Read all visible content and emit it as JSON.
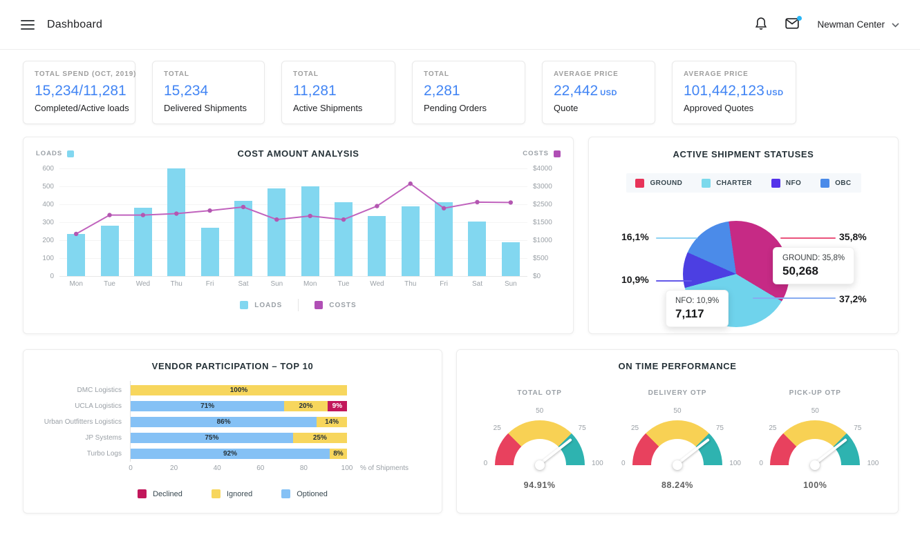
{
  "header": {
    "title": "Dashboard",
    "account": "Newman Center"
  },
  "stat_cards": [
    {
      "label": "TOTAL SPEND (OCT, 2019)",
      "value": "15,234/11,281",
      "unit": "",
      "desc": "Completed/Active loads"
    },
    {
      "label": "TOTAL",
      "value": "15,234",
      "unit": "",
      "desc": "Delivered Shipments"
    },
    {
      "label": "TOTAL",
      "value": "11,281",
      "unit": "",
      "desc": "Active Shipments"
    },
    {
      "label": "TOTAL",
      "value": "2,281",
      "unit": "",
      "desc": "Pending Orders"
    },
    {
      "label": "AVERAGE PRICE",
      "value": "22,442",
      "unit": "USD",
      "desc": "Quote"
    },
    {
      "label": "AVERAGE PRICE",
      "value": "101,442,123",
      "unit": "USD",
      "desc": "Approved Quotes"
    }
  ],
  "colors": {
    "accent_blue": "#4285f4",
    "loads_bar": "#82d7f0",
    "costs_line": "#c062bd",
    "costs_dot": "#b357b1"
  },
  "chart_data": [
    {
      "id": "cost_amount_analysis",
      "type": "bar",
      "title": "COST AMOUNT ANALYSIS",
      "categories": [
        "Mon",
        "Tue",
        "Wed",
        "Thu",
        "Fri",
        "Sat",
        "Sun",
        "Mon",
        "Tue",
        "Wed",
        "Thu",
        "Fri",
        "Sat",
        "Sun"
      ],
      "series": [
        {
          "name": "LOADS",
          "type": "bar",
          "axis": "left",
          "color": "#82d7f0",
          "values": [
            235,
            280,
            380,
            600,
            270,
            420,
            490,
            500,
            410,
            335,
            390,
            410,
            305,
            190
          ]
        },
        {
          "name": "COSTS",
          "type": "line",
          "axis": "right",
          "color": "#c062bd",
          "dot_color": "#b357b1",
          "values_usd": [
            1175,
            1900,
            1900,
            1975,
            2150,
            2350,
            1575,
            1850,
            1575,
            2400,
            3150,
            2275,
            2550,
            2550
          ],
          "values_left_axis_equiv": [
            235,
            340,
            340,
            348,
            365,
            385,
            315,
            335,
            315,
            390,
            515,
            378,
            412,
            410
          ]
        }
      ],
      "left_axis": {
        "ticks": [
          0,
          100,
          200,
          300,
          400,
          500,
          600
        ],
        "max": 600
      },
      "right_axis": {
        "tick_labels": [
          "$0",
          "$500",
          "$1000",
          "$1500",
          "$2500",
          "$3000",
          "$4000"
        ]
      },
      "legend": [
        "LOADS",
        "COSTS"
      ],
      "grid": true
    },
    {
      "id": "active_shipment_statuses",
      "type": "pie",
      "title": "ACTIVE SHIPMENT STATUSES",
      "start_angle_deg": -8,
      "slices": [
        {
          "label": "GROUND",
          "pct": 35.8,
          "pct_label": "35,8%",
          "color": "#c62a85",
          "legend_color": "#e73459",
          "leader_color": "#ea527c",
          "value": "50,268"
        },
        {
          "label": "CHARTER",
          "pct": 37.2,
          "pct_label": "37,2%",
          "color": "#6fd3ec",
          "legend_color": "#7cd9ec",
          "leader_color": "#86abf0"
        },
        {
          "label": "NFO",
          "pct": 10.9,
          "pct_label": "10,9%",
          "color": "#4c3fe2",
          "legend_color": "#5433ea",
          "leader_color": "#6257e8",
          "value": "7,117"
        },
        {
          "label": "OBC",
          "pct": 16.1,
          "pct_label": "16,1%",
          "color": "#4b8be9",
          "legend_color": "#4b8be9",
          "leader_color": "#8ed2f2"
        }
      ],
      "tooltips": [
        {
          "text": "GROUND: 35,8%",
          "value": "50,268"
        },
        {
          "text": "NFO: 10,9%",
          "value": "7,117"
        }
      ],
      "legend_position": "top"
    },
    {
      "id": "vendor_participation",
      "type": "bar",
      "orientation": "horizontal-stacked",
      "title": "VENDOR PARTICIPATION – TOP 10",
      "categories": [
        "DMC Logistics",
        "UCLA Logistics",
        "Urban Outfitters Logistics",
        "JP Systems",
        "Turbo Logs"
      ],
      "series": [
        {
          "name": "Optioned",
          "color": "#85c1f5",
          "values": [
            0,
            71,
            86,
            75,
            92
          ]
        },
        {
          "name": "Ignored",
          "color": "#f7d65d",
          "values": [
            100,
            20,
            14,
            25,
            8
          ]
        },
        {
          "name": "Declined",
          "color": "#c2175b",
          "values": [
            0,
            9,
            0,
            0,
            0
          ]
        }
      ],
      "x_ticks": [
        0,
        20,
        40,
        60,
        80,
        100
      ],
      "xlabel": "% of Shipments",
      "legend": [
        "Declined",
        "Ignored",
        "Optioned"
      ]
    },
    {
      "id": "on_time_performance",
      "type": "gauge",
      "title": "ON TIME PERFORMANCE",
      "gauges": [
        {
          "label": "TOTAL OTP",
          "value": 94.91,
          "value_label": "94.91%"
        },
        {
          "label": "DELIVERY OTP",
          "value": 88.24,
          "value_label": "88.24%"
        },
        {
          "label": "PICK-UP OTP",
          "value": 100,
          "value_label": "100%"
        }
      ],
      "segments": [
        {
          "from": 0,
          "to": 25,
          "color": "#e8415e"
        },
        {
          "from": 25,
          "to": 75,
          "color": "#f8d154"
        },
        {
          "from": 75,
          "to": 100,
          "color": "#2eb3b0"
        }
      ],
      "ticks": [
        0,
        25,
        50,
        75,
        100
      ]
    }
  ]
}
